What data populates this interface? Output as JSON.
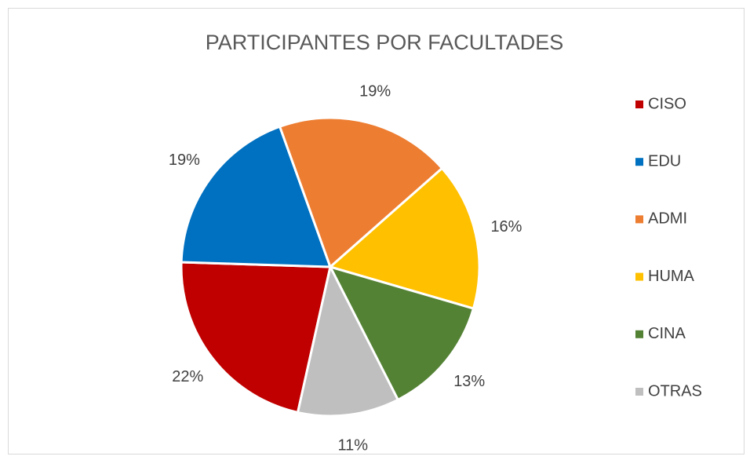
{
  "chart_data": {
    "type": "pie",
    "title": "PARTICIPANTES POR FACULTADES",
    "categories": [
      "CISO",
      "EDU",
      "ADMI",
      "HUMA",
      "CINA",
      "OTRAS"
    ],
    "values": [
      22,
      19,
      19,
      16,
      13,
      11
    ],
    "value_labels": [
      "22%",
      "19%",
      "19%",
      "16%",
      "13%",
      "11%"
    ],
    "colors": [
      "#c00000",
      "#0070c0",
      "#ed7d31",
      "#ffc000",
      "#548235",
      "#bfbfbf"
    ],
    "legend": "right"
  }
}
